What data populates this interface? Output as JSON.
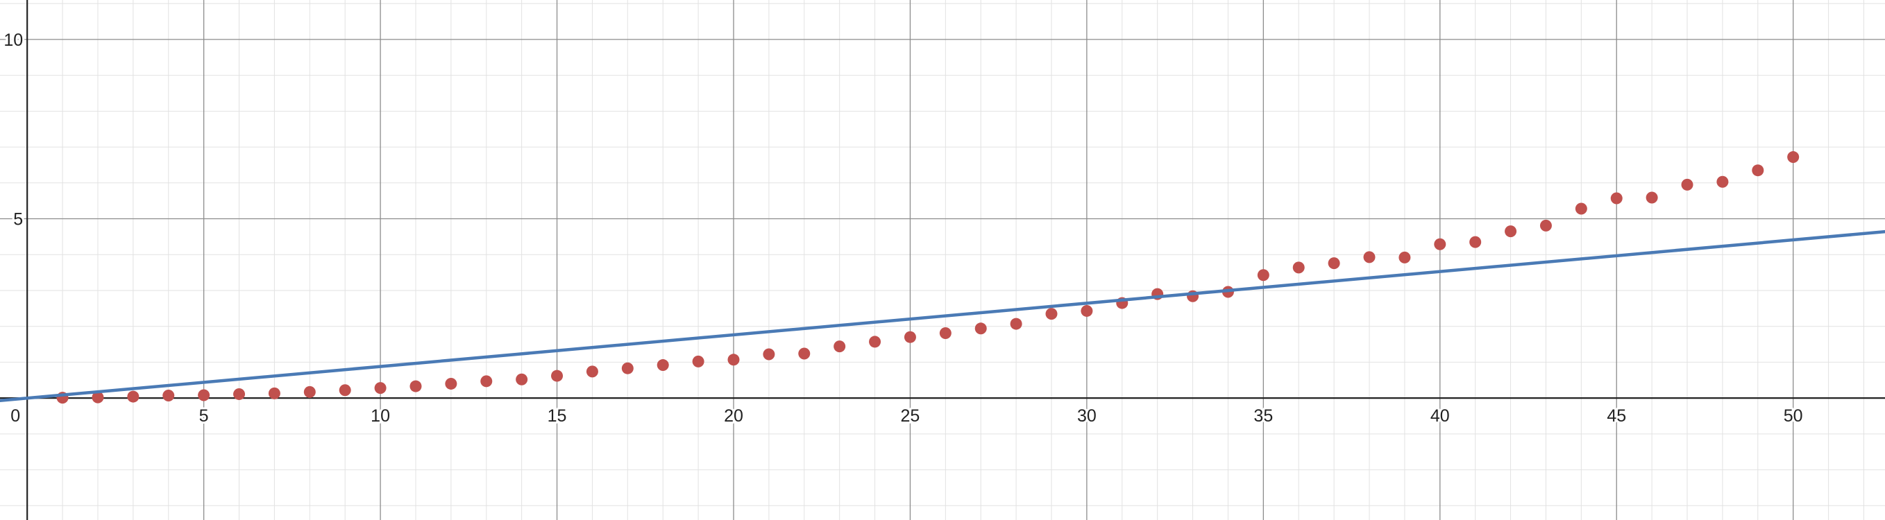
{
  "chart_data": {
    "type": "scatter",
    "title": "",
    "xlabel": "",
    "ylabel": "",
    "xlim": [
      -0.77,
      52.6
    ],
    "ylim": [
      -3.4,
      11.1
    ],
    "grid": true,
    "grid_major_step": 5,
    "grid_minor_step": 1,
    "x_tick_labels": [
      "0",
      "5",
      "10",
      "15",
      "20",
      "25",
      "30",
      "35",
      "40",
      "45",
      "50"
    ],
    "y_tick_labels": [
      "5",
      "10"
    ],
    "series": [
      {
        "type": "points",
        "color": "#c0504d",
        "x": [
          1,
          2,
          3,
          4,
          5,
          6,
          7,
          8,
          9,
          10,
          11,
          12,
          13,
          14,
          15,
          16,
          17,
          18,
          19,
          20,
          21,
          22,
          23,
          24,
          25,
          26,
          27,
          28,
          29,
          30,
          31,
          32,
          33,
          34,
          35,
          36,
          37,
          38,
          39,
          40,
          41,
          42,
          43,
          44,
          45,
          46,
          47,
          48,
          49,
          50
        ],
        "y": [
          0.01,
          0.02,
          0.04,
          0.07,
          0.08,
          0.11,
          0.13,
          0.17,
          0.22,
          0.28,
          0.33,
          0.4,
          0.47,
          0.52,
          0.62,
          0.74,
          0.83,
          0.92,
          1.02,
          1.07,
          1.22,
          1.24,
          1.44,
          1.57,
          1.7,
          1.81,
          1.94,
          2.07,
          2.35,
          2.43,
          2.65,
          2.9,
          2.84,
          2.96,
          3.43,
          3.64,
          3.76,
          3.93,
          3.92,
          4.29,
          4.35,
          4.65,
          4.81,
          5.28,
          5.57,
          5.59,
          5.95,
          6.03,
          6.35,
          6.72
        ]
      },
      {
        "type": "line",
        "color": "#4a7ab5",
        "x": [
          -0.77,
          52.6
        ],
        "y": [
          -0.07,
          4.64
        ]
      }
    ]
  }
}
